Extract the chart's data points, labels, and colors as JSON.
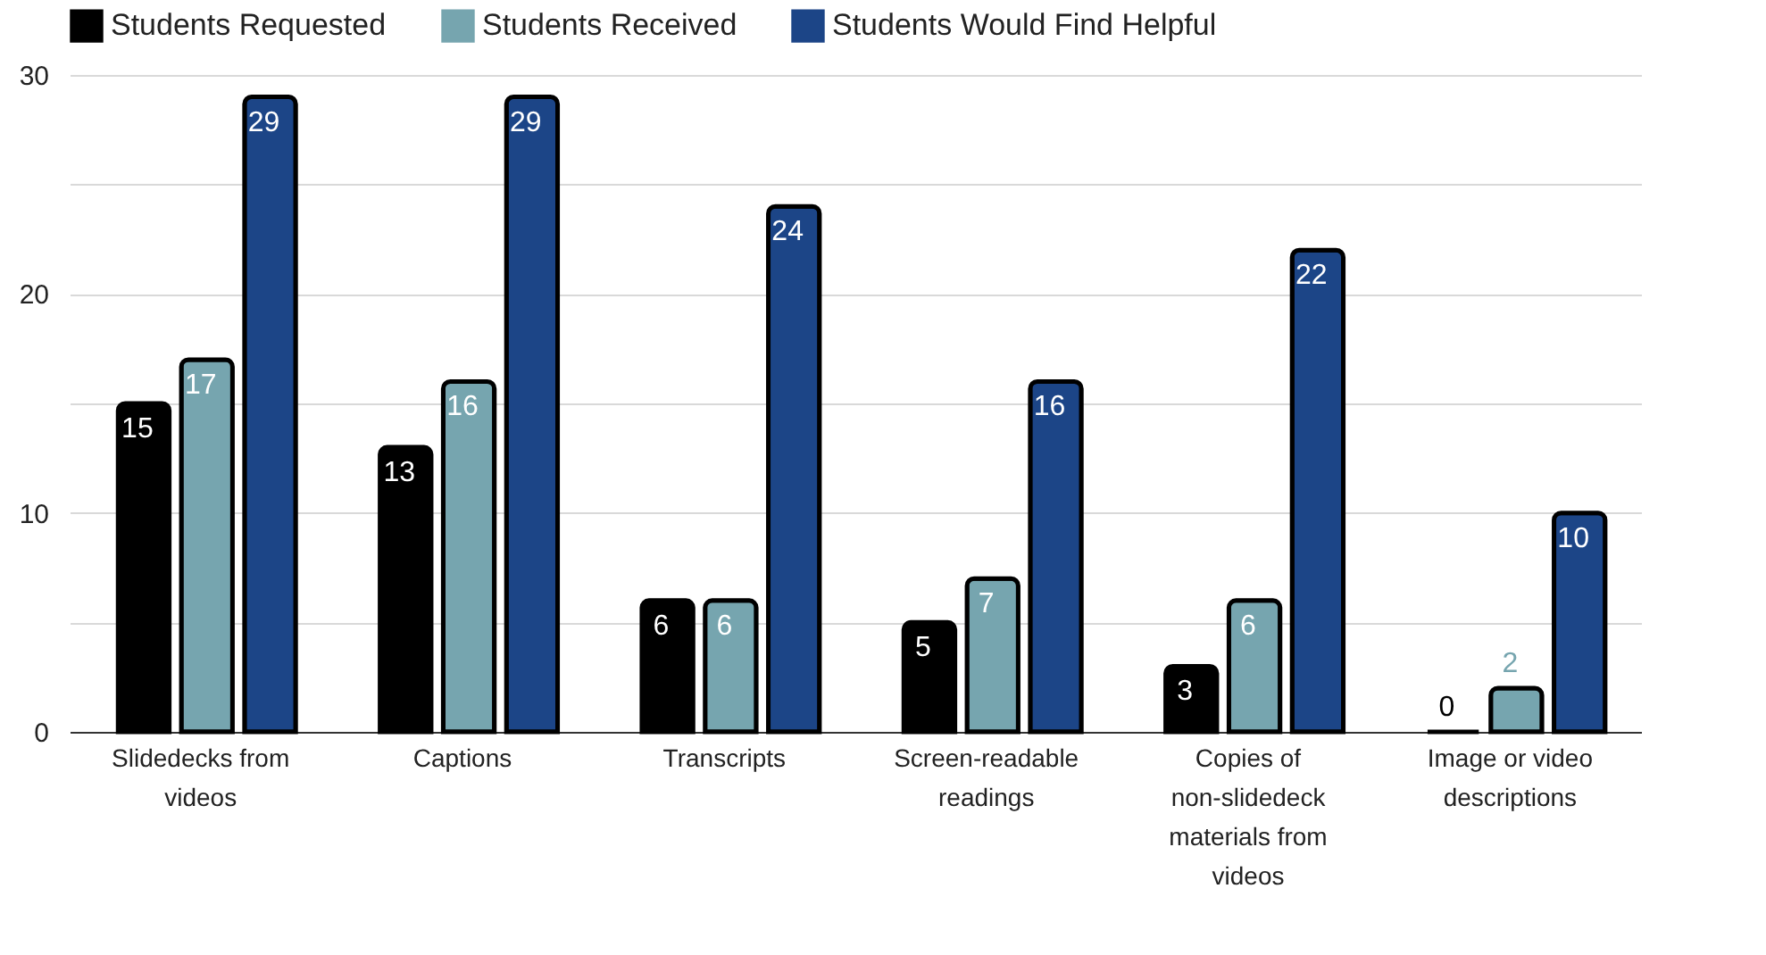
{
  "chart_data": {
    "type": "bar",
    "categories": [
      "Slidedecks from videos",
      "Captions",
      "Transcripts",
      "Screen-readable readings",
      "Copies of non-slidedeck materials from videos",
      "Image or video descriptions"
    ],
    "series": [
      {
        "name": "Students Requested",
        "color": "#000000",
        "values": [
          15,
          13,
          6,
          5,
          3,
          0
        ]
      },
      {
        "name": "Students Received",
        "color": "#76a5af",
        "values": [
          17,
          16,
          6,
          7,
          6,
          2
        ]
      },
      {
        "name": "Students Would Find Helpful",
        "color": "#1c4587",
        "values": [
          29,
          29,
          24,
          16,
          22,
          10
        ]
      }
    ],
    "ylim": [
      0,
      30
    ],
    "yticks": [
      0,
      {
        "value": 5,
        "label": null
      },
      10,
      {
        "value": 15,
        "label": null
      },
      20,
      {
        "value": 25,
        "label": null
      },
      30
    ],
    "grid": "y",
    "legend": "top",
    "data_labels": true
  }
}
